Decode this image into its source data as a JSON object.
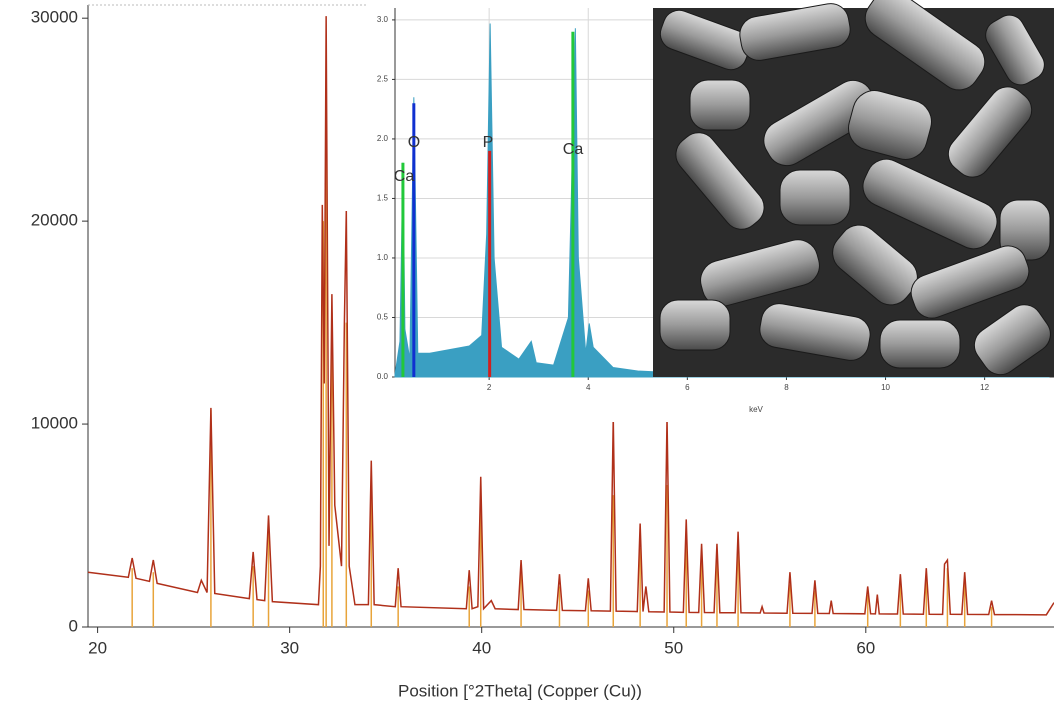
{
  "chart_data": [
    {
      "type": "line",
      "x_label": "Position [°2Theta] (Copper (Cu))",
      "xlim": [
        19.5,
        69.8
      ],
      "ylim": [
        0,
        30650
      ],
      "xticks": [
        20,
        30,
        40,
        50,
        60
      ],
      "yticks": [
        0,
        10000,
        20000,
        30000
      ],
      "color": "#b0301a",
      "x": [
        19.5,
        21.6,
        21.8,
        22.0,
        22.7,
        22.9,
        23.1,
        25.2,
        25.4,
        25.7,
        25.9,
        26.1,
        27.9,
        28.1,
        28.3,
        28.7,
        28.9,
        29.1,
        31.5,
        31.6,
        31.7,
        31.8,
        31.9,
        32.05,
        32.2,
        32.35,
        32.7,
        32.85,
        32.95,
        33.1,
        33.4,
        34.1,
        34.25,
        34.4,
        35.5,
        35.65,
        35.8,
        39.2,
        39.35,
        39.5,
        39.8,
        39.95,
        40.1,
        40.5,
        40.7,
        41.9,
        42.05,
        42.2,
        43.9,
        44.05,
        44.2,
        45.4,
        45.55,
        45.7,
        46.7,
        46.85,
        47.0,
        48.1,
        48.25,
        48.4,
        48.55,
        48.7,
        49.5,
        49.65,
        49.8,
        50.5,
        50.65,
        50.8,
        51.3,
        51.45,
        51.6,
        52.1,
        52.25,
        52.4,
        53.2,
        53.35,
        53.5,
        54.5,
        54.6,
        54.7,
        55.9,
        56.05,
        56.2,
        57.2,
        57.35,
        57.5,
        58.1,
        58.2,
        58.3,
        59.95,
        60.1,
        60.25,
        60.5,
        60.6,
        60.7,
        61.65,
        61.8,
        61.95,
        63.0,
        63.15,
        63.3,
        64.0,
        64.1,
        64.25,
        64.4,
        65.0,
        65.15,
        65.3,
        66.4,
        66.55,
        66.7,
        69.4,
        69.8
      ],
      "values": [
        2700,
        2450,
        3400,
        2400,
        2250,
        3300,
        2150,
        1700,
        2300,
        1700,
        10800,
        1650,
        1400,
        3700,
        1350,
        1300,
        5500,
        1250,
        1100,
        3000,
        20800,
        12000,
        30100,
        4000,
        16400,
        6000,
        3000,
        15000,
        20500,
        3000,
        1100,
        1100,
        8200,
        1100,
        1000,
        2900,
        1000,
        900,
        2800,
        900,
        1000,
        7400,
        900,
        1300,
        900,
        860,
        3300,
        860,
        820,
        2600,
        820,
        800,
        2400,
        800,
        780,
        10300,
        780,
        760,
        5100,
        760,
        2000,
        750,
        740,
        10300,
        740,
        720,
        5300,
        720,
        715,
        4100,
        715,
        710,
        4100,
        705,
        700,
        4700,
        700,
        690,
        1000,
        690,
        680,
        2700,
        680,
        670,
        2300,
        670,
        665,
        1300,
        665,
        650,
        2000,
        650,
        645,
        1600,
        645,
        640,
        2600,
        640,
        630,
        2900,
        630,
        625,
        3100,
        3300,
        625,
        620,
        2700,
        620,
        615,
        1300,
        612,
        600,
        1200
      ],
      "sticks": {
        "color": "#e8a43a",
        "x": [
          21.8,
          22.9,
          25.9,
          28.1,
          28.9,
          31.75,
          31.9,
          32.2,
          32.95,
          34.25,
          35.65,
          39.35,
          39.95,
          42.05,
          44.05,
          45.55,
          46.85,
          48.25,
          49.65,
          50.65,
          51.45,
          52.25,
          53.35,
          56.05,
          57.35,
          60.1,
          61.8,
          63.15,
          64.25,
          65.15,
          66.55
        ],
        "values": [
          2900,
          2700,
          10700,
          3000,
          5000,
          20000,
          25000,
          15500,
          15000,
          7500,
          2000,
          2000,
          7000,
          2800,
          2000,
          1800,
          6500,
          3900,
          7000,
          4300,
          3400,
          3400,
          4200,
          2100,
          1800,
          1600,
          2200,
          2500,
          2900,
          2300,
          1000
        ]
      }
    },
    {
      "type": "area",
      "x_label": "keV",
      "xlim": [
        0.1,
        13.4
      ],
      "ylim": [
        0,
        3.1
      ],
      "xticks": [
        2,
        4,
        6,
        8,
        10,
        12
      ],
      "yticks": [
        {
          "value": 0,
          "label": "0.0"
        },
        0.5,
        {
          "value": 1,
          "label": "1.0"
        },
        1.5,
        {
          "value": 2,
          "label": "2.0"
        },
        2.5,
        {
          "value": 3,
          "label": "3.0"
        }
      ],
      "color": "#3a9fc2",
      "x": [
        0.1,
        0.2,
        0.26,
        0.3,
        0.4,
        0.48,
        0.56,
        0.8,
        1.2,
        1.6,
        1.85,
        1.95,
        2.02,
        2.1,
        2.25,
        2.6,
        2.85,
        2.95,
        3.3,
        3.6,
        3.69,
        3.74,
        3.8,
        3.95,
        4.02,
        4.1,
        4.5,
        5.0,
        6.0,
        8.0,
        13.3
      ],
      "values": [
        0.02,
        0.3,
        1.8,
        0.4,
        0.15,
        2.35,
        0.2,
        0.2,
        0.23,
        0.26,
        0.35,
        1.2,
        2.97,
        1.0,
        0.25,
        0.15,
        0.3,
        0.12,
        0.1,
        0.5,
        2.05,
        2.93,
        1.0,
        0.2,
        0.45,
        0.25,
        0.08,
        0.05,
        0.03,
        0.02,
        0.01
      ],
      "markers": {
        "x": [
          0.26,
          0.48,
          2.01,
          3.69
        ],
        "values": [
          1.8,
          2.3,
          1.9,
          2.9
        ],
        "colors": [
          "#22c83a",
          "#1030d0",
          "#d02020",
          "#22c83a"
        ]
      },
      "annotations": [
        "Ca",
        "O",
        "P",
        "Ca"
      ]
    }
  ]
}
